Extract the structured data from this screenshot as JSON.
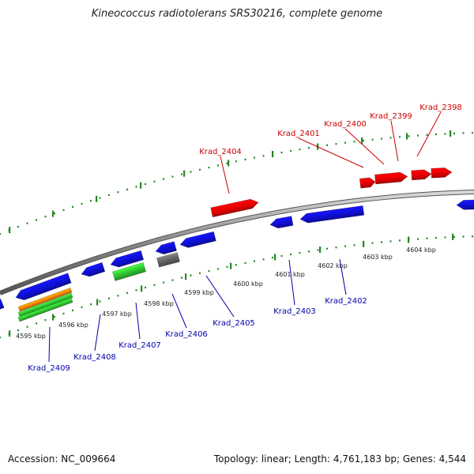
{
  "title": "Kineococcus radiotolerans SRS30216, complete genome",
  "footer": {
    "accession": "Accession: NC_009664",
    "summary": "Topology: linear; Length: 4,761,183 bp; Genes: 4,544"
  },
  "colors": {
    "forward_gene": "#ee0000",
    "reverse_gene": "#1010dd",
    "rna_green": "#33cc33",
    "rna_orange": "#ff8800",
    "pseudo_gray": "#666666",
    "backbone": "#888888",
    "tick": "#228822",
    "forward_label": "#cc0000",
    "reverse_label": "#0000aa"
  },
  "scale_labels": [
    "4595 kbp",
    "4596 kbp",
    "4597 kbp",
    "4598 kbp",
    "4599 kbp",
    "4600 kbp",
    "4601 kbp",
    "4602 kbp",
    "4603 kbp",
    "4604 kbp"
  ],
  "forward_genes": [
    {
      "name": "Krad_2404",
      "color": "#ee0000"
    },
    {
      "name": "Krad_2401",
      "color": "#ee0000"
    },
    {
      "name": "Krad_2400",
      "color": "#ee0000"
    },
    {
      "name": "Krad_2399",
      "color": "#ee0000"
    },
    {
      "name": "Krad_2398",
      "color": "#ee0000"
    }
  ],
  "reverse_genes": [
    {
      "name": "Krad_2409",
      "color": "#1010dd"
    },
    {
      "name": "Krad_2408",
      "color": "#1010dd"
    },
    {
      "name": "Krad_2407",
      "color": "#33cc33"
    },
    {
      "name": "Krad_2406",
      "color": "#666666"
    },
    {
      "name": "Krad_2405",
      "color": "#1010dd"
    },
    {
      "name": "Krad_2403",
      "color": "#1010dd"
    },
    {
      "name": "Krad_2402",
      "color": "#1010dd"
    }
  ]
}
